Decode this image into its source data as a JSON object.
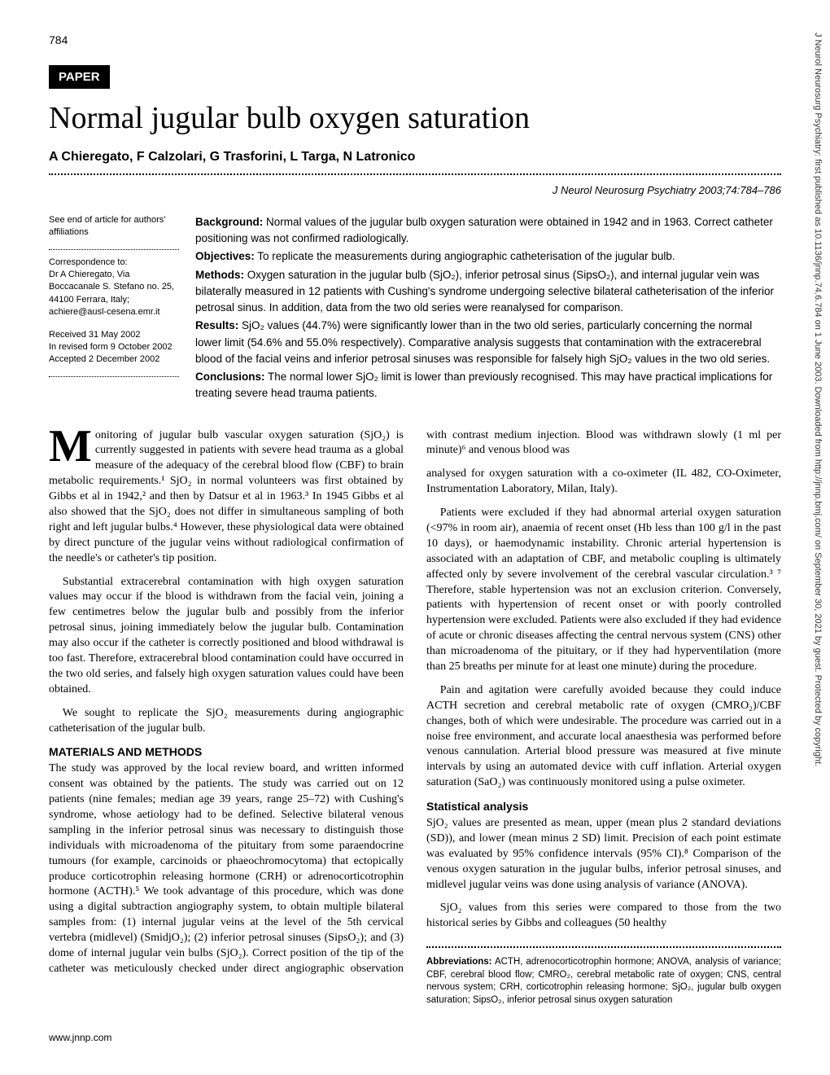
{
  "page_number": "784",
  "side_citation": "J Neurol Neurosurg Psychiatry: first published as 10.1136/jnnp.74.6.784 on 1 June 2003. Downloaded from http://jnnp.bmj.com/ on September 30, 2021 by guest. Protected by copyright.",
  "badge": "PAPER",
  "title": "Normal jugular bulb oxygen saturation",
  "authors": "A Chieregato, F Calzolari, G Trasforini, L Targa, N Latronico",
  "journal_citation": "J Neurol Neurosurg Psychiatry 2003;74:784–786",
  "meta": {
    "see_end": "See end of article for authors' affiliations",
    "corr_label": "Correspondence to:",
    "corr_body": "Dr A Chieregato, Via Boccacanale S. Stefano no. 25, 44100 Ferrara, Italy;",
    "corr_email": "achiere@ausl-cesena.emr.it",
    "received": "Received 31 May 2002",
    "revised": "In revised form 9 October 2002",
    "accepted": "Accepted 2 December 2002"
  },
  "abstract": {
    "background_label": "Background:",
    "background": " Normal values of the jugular bulb oxygen saturation were obtained in 1942 and in 1963. Correct catheter positioning was not confirmed radiologically.",
    "objectives_label": "Objectives:",
    "objectives": " To replicate the measurements during angiographic catheterisation of the jugular bulb.",
    "methods_label": "Methods:",
    "methods": " Oxygen saturation in the jugular bulb (SjO₂), inferior petrosal sinus (SipsO₂), and internal jugular vein was bilaterally measured in 12 patients with Cushing's syndrome undergoing selective bilateral catheterisation of the inferior petrosal sinus. In addition, data from the two old series were reanalysed for comparison.",
    "results_label": "Results:",
    "results": " SjO₂ values (44.7%) were significantly lower than in the two old series, particularly concerning the normal lower limit (54.6% and 55.0% respectively). Comparative analysis suggests that contamination with the extracerebral blood of the facial veins and inferior petrosal sinuses was responsible for falsely high SjO₂ values in the two old series.",
    "conclusions_label": "Conclusions:",
    "conclusions": " The normal lower SjO₂ limit is lower than previously recognised. This may have practical implications for treating severe head trauma patients."
  },
  "body": {
    "p1": "onitoring of jugular bulb vascular oxygen saturation (SjO₂) is currently suggested in patients with severe head trauma as a global measure of the adequacy of the cerebral blood flow (CBF) to brain metabolic requirements.¹ SjO₂ in normal volunteers was first obtained by Gibbs et al in 1942,² and then by Datsur et al in 1963.³ In 1945 Gibbs et al also showed that the SjO₂ does not differ in simultaneous sampling of both right and left jugular bulbs.⁴ However, these physiological data were obtained by direct puncture of the jugular veins without radiological confirmation of the needle's or catheter's tip position.",
    "p2": "Substantial extracerebral contamination with high oxygen saturation values may occur if the blood is withdrawn from the facial vein, joining a few centimetres below the jugular bulb and possibly from the inferior petrosal sinus, joining immediately below the jugular bulb. Contamination may also occur if the catheter is correctly positioned and blood withdrawal is too fast. Therefore, extracerebral blood contamination could have occurred in the two old series, and falsely high oxygen saturation values could have been obtained.",
    "p3": "We sought to replicate the SjO₂ measurements during angiographic catheterisation of the jugular bulb.",
    "methods_head": "MATERIALS AND METHODS",
    "p4": "The study was approved by the local review board, and written informed consent was obtained by the patients. The study was carried out on 12 patients (nine females; median age 39 years, range 25–72) with Cushing's syndrome, whose aetiology had to be defined. Selective bilateral venous sampling in the inferior petrosal sinus was necessary to distinguish those individuals with microadenoma of the pituitary from some paraendocrine tumours (for example, carcinoids or phaeochromocytoma) that ectopically produce corticotrophin releasing hormone (CRH) or adrenocorticotrophin hormone (ACTH).⁵ We took advantage of this procedure, which was done using a digital subtraction angiography system, to obtain multiple bilateral samples from: (1) internal jugular veins at the level of the 5th cervical vertebra (midlevel) (SmidjO₂); (2) inferior petrosal sinuses (SipsO₂); and (3) dome of internal jugular vein bulbs (SjO₂). Correct position of the tip of the catheter was meticulously checked under direct angiographic observation with contrast medium injection. Blood was withdrawn slowly (1 ml per minute)⁶ and venous blood was",
    "p5": "analysed for oxygen saturation with a co-oximeter (IL 482, CO-Oximeter, Instrumentation Laboratory, Milan, Italy).",
    "p6": "Patients were excluded if they had abnormal arterial oxygen saturation (<97% in room air), anaemia of recent onset (Hb less than 100 g/l in the past 10 days), or haemodynamic instability. Chronic arterial hypertension is associated with an adaptation of CBF, and metabolic coupling is ultimately affected only by severe involvement of the cerebral vascular circulation.³ ⁷ Therefore, stable hypertension was not an exclusion criterion. Conversely, patients with hypertension of recent onset or with poorly controlled hypertension were excluded. Patients were also excluded if they had evidence of acute or chronic diseases affecting the central nervous system (CNS) other than microadenoma of the pituitary, or if they had hyperventilation (more than 25 breaths per minute for at least one minute) during the procedure.",
    "p7": "Pain and agitation were carefully avoided because they could induce ACTH secretion and cerebral metabolic rate of oxygen (CMRO₂)/CBF changes, both of which were undesirable. The procedure was carried out in a noise free environment, and accurate local anaesthesia was performed before venous cannulation. Arterial blood pressure was measured at five minute intervals by using an automated device with cuff inflation. Arterial oxygen saturation (SaO₂) was continuously monitored using a pulse oximeter.",
    "stats_head": "Statistical analysis",
    "p8": "SjO₂ values are presented as mean, upper (mean plus 2 standard deviations (SD)), and lower (mean minus 2 SD) limit. Precision of each point estimate was evaluated by 95% confidence intervals (95% CI).⁸ Comparison of the venous oxygen saturation in the jugular bulbs, inferior petrosal sinuses, and midlevel jugular veins was done using analysis of variance (ANOVA).",
    "p9": "SjO₂ values from this series were compared to those from the two historical series by Gibbs and colleagues (50 healthy"
  },
  "abbrev": {
    "label": "Abbreviations:",
    "text": " ACTH, adrenocorticotrophin hormone; ANOVA, analysis of variance; CBF, cerebral blood flow; CMRO₂, cerebral metabolic rate of oxygen; CNS, central nervous system; CRH, corticotrophin releasing hormone; SjO₂, jugular bulb oxygen saturation; SipsO₂, inferior petrosal sinus oxygen saturation"
  },
  "footer": "www.jnnp.com"
}
